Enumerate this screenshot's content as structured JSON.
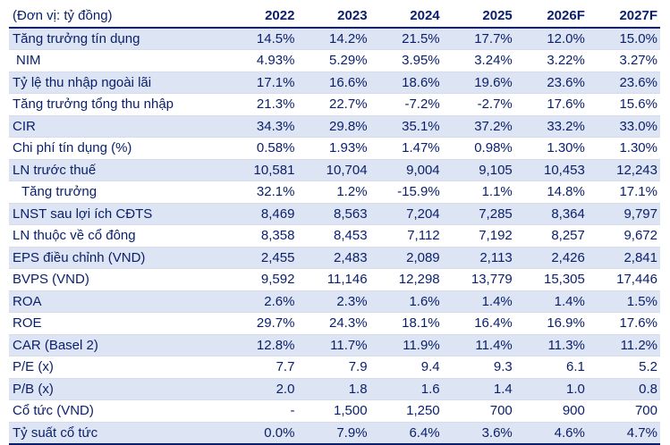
{
  "table": {
    "unit_label": "(Đơn vị: tỷ đồng)",
    "columns": [
      "2022",
      "2023",
      "2024",
      "2025",
      "2026F",
      "2027F"
    ],
    "rows": [
      {
        "label": "Tăng trưởng tín dụng",
        "values": [
          "14.5%",
          "14.2%",
          "21.5%",
          "17.7%",
          "12.0%",
          "15.0%"
        ]
      },
      {
        "label": "NIM",
        "values": [
          "4.93%",
          "5.29%",
          "3.95%",
          "3.24%",
          "3.22%",
          "3.27%"
        ]
      },
      {
        "label": "Tỷ lệ thu nhập ngoài lãi",
        "values": [
          "17.1%",
          "16.6%",
          "18.6%",
          "19.6%",
          "23.6%",
          "23.6%"
        ]
      },
      {
        "label": "Tăng trưởng tổng thu nhập",
        "values": [
          "21.3%",
          "22.7%",
          "-7.2%",
          "-2.7%",
          "17.6%",
          "15.6%"
        ]
      },
      {
        "label": "CIR",
        "values": [
          "34.3%",
          "29.8%",
          "35.1%",
          "37.2%",
          "33.2%",
          "33.0%"
        ]
      },
      {
        "label": "Chi phí tín dụng (%)",
        "values": [
          "0.58%",
          "1.93%",
          "1.47%",
          "0.98%",
          "1.30%",
          "1.30%"
        ]
      },
      {
        "label": "LN trước thuế",
        "values": [
          "10,581",
          "10,704",
          "9,004",
          "9,105",
          "10,453",
          "12,243"
        ]
      },
      {
        "label": "Tăng trưởng",
        "values": [
          "32.1%",
          "1.2%",
          "-15.9%",
          "1.1%",
          "14.8%",
          "17.1%"
        ]
      },
      {
        "label": "LNST sau lợi ích CĐTS",
        "values": [
          "8,469",
          "8,563",
          "7,204",
          "7,285",
          "8,364",
          "9,797"
        ]
      },
      {
        "label": "LN thuộc về cổ đông",
        "values": [
          "8,358",
          "8,453",
          "7,112",
          "7,192",
          "8,257",
          "9,672"
        ]
      },
      {
        "label": "EPS điều chỉnh (VND)",
        "values": [
          "2,455",
          "2,483",
          "2,089",
          "2,113",
          "2,426",
          "2,841"
        ]
      },
      {
        "label": "BVPS (VND)",
        "values": [
          "9,592",
          "11,146",
          "12,298",
          "13,779",
          "15,305",
          "17,446"
        ]
      },
      {
        "label": "ROA",
        "values": [
          "2.6%",
          "2.3%",
          "1.6%",
          "1.4%",
          "1.4%",
          "1.5%"
        ]
      },
      {
        "label": "ROE",
        "values": [
          "29.7%",
          "24.3%",
          "18.1%",
          "16.4%",
          "16.9%",
          "17.6%"
        ]
      },
      {
        "label": "CAR (Basel 2)",
        "values": [
          "12.8%",
          "11.7%",
          "11.9%",
          "11.4%",
          "11.3%",
          "11.2%"
        ]
      },
      {
        "label": "P/E (x)",
        "values": [
          "7.7",
          "7.9",
          "9.4",
          "9.3",
          "6.1",
          "5.2"
        ]
      },
      {
        "label": "P/B (x)",
        "values": [
          "2.0",
          "1.8",
          "1.6",
          "1.4",
          "1.0",
          "0.8"
        ]
      },
      {
        "label": "Cổ tức (VND)",
        "values": [
          "-",
          "1,500",
          "1,250",
          "700",
          "900",
          "700"
        ]
      },
      {
        "label": "Tỷ suất cổ tức",
        "values": [
          "0.0%",
          "7.9%",
          "6.4%",
          "3.6%",
          "4.6%",
          "4.7%"
        ]
      }
    ]
  },
  "colors": {
    "text": "#0a1f6b",
    "row_shade": "#dde4f3",
    "rule": "#0a1f6b"
  }
}
